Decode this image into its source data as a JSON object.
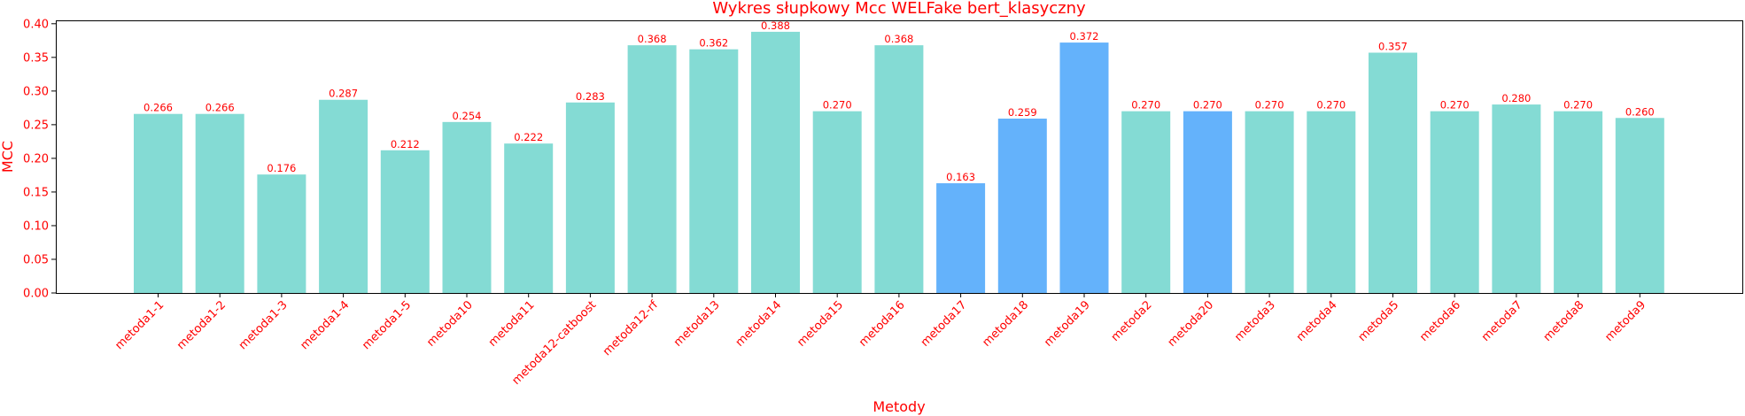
{
  "chart_data": {
    "type": "bar",
    "title": "Wykres słupkowy Mcc WELFake bert_klasyczny",
    "xlabel": "Metody",
    "ylabel": "MCC",
    "ylim": [
      0,
      0.405
    ],
    "yticks": [
      "0.00",
      "0.05",
      "0.10",
      "0.15",
      "0.20",
      "0.25",
      "0.30",
      "0.35",
      "0.40"
    ],
    "grid": false,
    "legend": "none",
    "text_color": "#ff0000",
    "categories": [
      "metoda1-1",
      "metoda1-2",
      "metoda1-3",
      "metoda1-4",
      "metoda1-5",
      "metoda10",
      "metoda11",
      "metoda12-catboost",
      "metoda12-rf",
      "metoda13",
      "metoda14",
      "metoda15",
      "metoda16",
      "metoda17",
      "metoda18",
      "metoda19",
      "metoda2",
      "metoda20",
      "metoda3",
      "metoda4",
      "metoda5",
      "metoda6",
      "metoda7",
      "metoda8",
      "metoda9"
    ],
    "values": [
      0.266,
      0.266,
      0.176,
      0.287,
      0.212,
      0.254,
      0.222,
      0.283,
      0.368,
      0.362,
      0.388,
      0.27,
      0.368,
      0.163,
      0.259,
      0.372,
      0.27,
      0.27,
      0.27,
      0.27,
      0.357,
      0.27,
      0.28,
      0.27,
      0.26
    ],
    "data_labels": [
      "0.266",
      "0.266",
      "0.176",
      "0.287",
      "0.212",
      "0.254",
      "0.222",
      "0.283",
      "0.368",
      "0.362",
      "0.388",
      "0.270",
      "0.368",
      "0.163",
      "0.259",
      "0.372",
      "0.270",
      "0.270",
      "0.270",
      "0.270",
      "0.357",
      "0.270",
      "0.280",
      "0.270",
      "0.260"
    ],
    "bar_colors": [
      "#84dbd4",
      "#84dbd4",
      "#84dbd4",
      "#84dbd4",
      "#84dbd4",
      "#84dbd4",
      "#84dbd4",
      "#84dbd4",
      "#84dbd4",
      "#84dbd4",
      "#84dbd4",
      "#84dbd4",
      "#84dbd4",
      "#64b2fb",
      "#64b2fb",
      "#64b2fb",
      "#84dbd4",
      "#64b2fb",
      "#84dbd4",
      "#84dbd4",
      "#84dbd4",
      "#84dbd4",
      "#84dbd4",
      "#84dbd4",
      "#84dbd4"
    ]
  }
}
